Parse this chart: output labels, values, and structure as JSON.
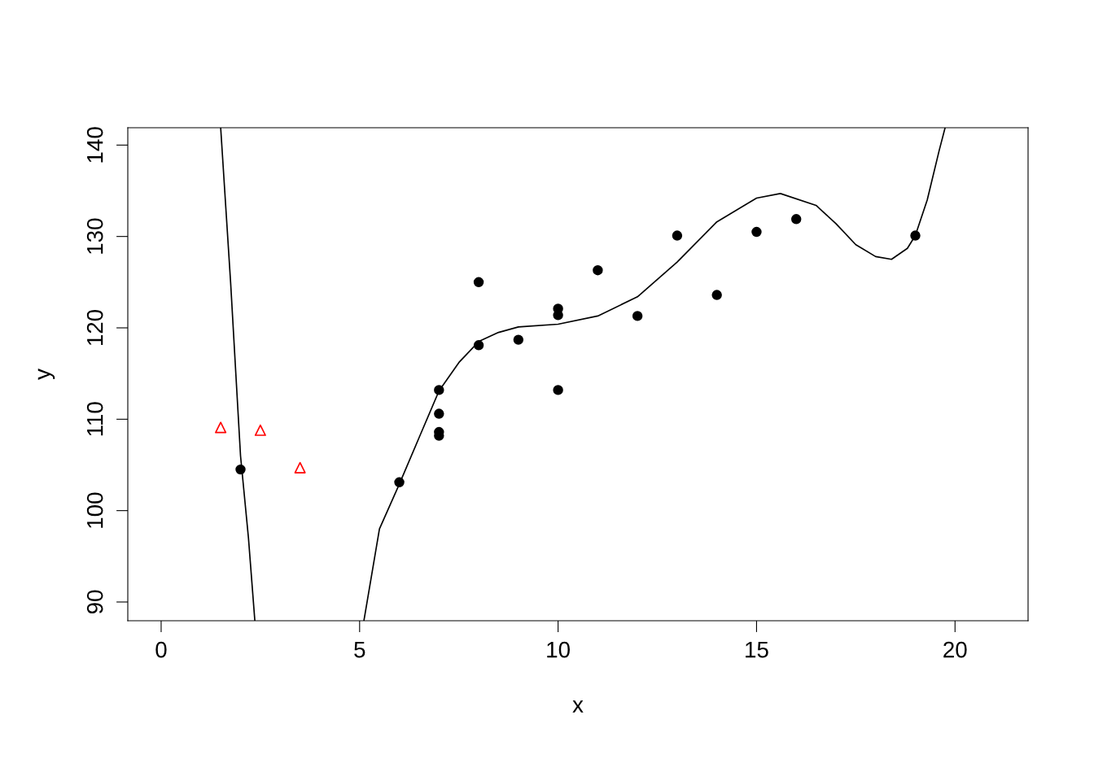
{
  "chart_data": {
    "type": "scatter",
    "xlabel": "x",
    "ylabel": "y",
    "xlim": [
      -0.84,
      21.84
    ],
    "ylim": [
      87.95,
      141.9
    ],
    "xticks": [
      0,
      5,
      10,
      15,
      20
    ],
    "yticks": [
      90,
      100,
      110,
      120,
      130,
      140
    ],
    "grid": false,
    "series": [
      {
        "color": "#000000",
        "marker": "circle",
        "x": [
          2,
          6,
          7,
          7,
          7,
          7,
          8,
          8,
          9,
          10,
          10,
          10,
          11,
          12,
          13,
          14,
          15,
          16,
          19
        ],
        "values": [
          104.5,
          103.1,
          113.2,
          110.6,
          108.6,
          108.2,
          118.1,
          125.0,
          118.7,
          122.1,
          121.4,
          113.2,
          126.3,
          121.3,
          130.1,
          123.6,
          130.5,
          131.9,
          130.1
        ]
      },
      {
        "color": "#ff0000",
        "marker": "triangle",
        "x": [
          1.5,
          2.5,
          3.5
        ],
        "values": [
          109.1,
          108.8,
          104.7
        ]
      },
      {
        "type": "line",
        "color": "#000000",
        "marker": "none",
        "line_style": "solid",
        "x": [
          1.5,
          1.75,
          2,
          2.2,
          2.36
        ],
        "values": [
          141.9,
          125,
          106,
          97,
          88
        ]
      },
      {
        "type": "line",
        "color": "#000000",
        "marker": "none",
        "line_style": "solid",
        "x": [
          5.11,
          5.5,
          6,
          6.5,
          7,
          7.5,
          8,
          8.5,
          9,
          10,
          11,
          12,
          13,
          14,
          15,
          15.6,
          16.5,
          17,
          17.5,
          18,
          18.4,
          18.8,
          19,
          19.3,
          19.6,
          19.75
        ],
        "values": [
          88,
          98,
          102.9,
          108,
          113.1,
          116.2,
          118.5,
          119.5,
          120.1,
          120.4,
          121.3,
          123.4,
          127.2,
          131.6,
          134.2,
          134.7,
          133.4,
          131.4,
          129.1,
          127.8,
          127.5,
          128.7,
          130.1,
          134.0,
          139.4,
          141.9
        ]
      }
    ]
  }
}
